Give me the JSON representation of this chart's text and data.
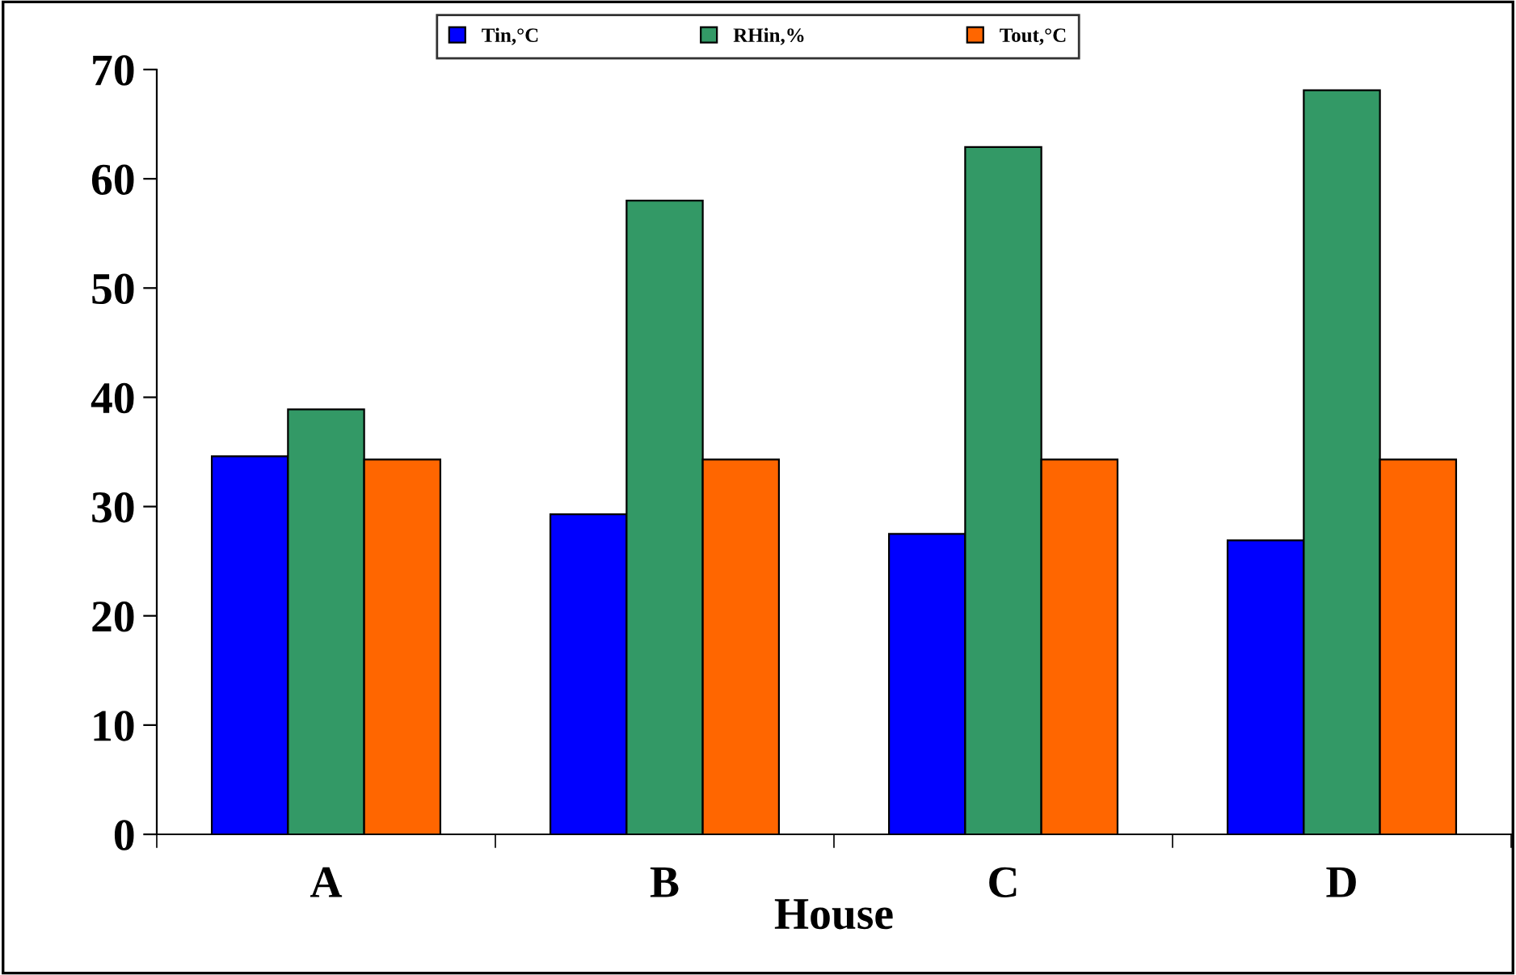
{
  "chart_data": {
    "type": "bar",
    "xlabel": "House",
    "categories": [
      "A",
      "B",
      "C",
      "D"
    ],
    "series": [
      {
        "name": "Tin,°C",
        "color": "#0000ff",
        "values": [
          34.6,
          29.3,
          27.5,
          26.9
        ]
      },
      {
        "name": "RHin,%",
        "color": "#339966",
        "values": [
          38.9,
          58.0,
          62.9,
          68.1
        ]
      },
      {
        "name": "Tout,°C",
        "color": "#ff6600",
        "values": [
          34.3,
          34.3,
          34.3,
          34.3
        ]
      }
    ],
    "ylim": [
      0,
      70
    ],
    "yticks": [
      0,
      10,
      20,
      30,
      40,
      50,
      60,
      70
    ],
    "grid": false,
    "legend": "top"
  }
}
